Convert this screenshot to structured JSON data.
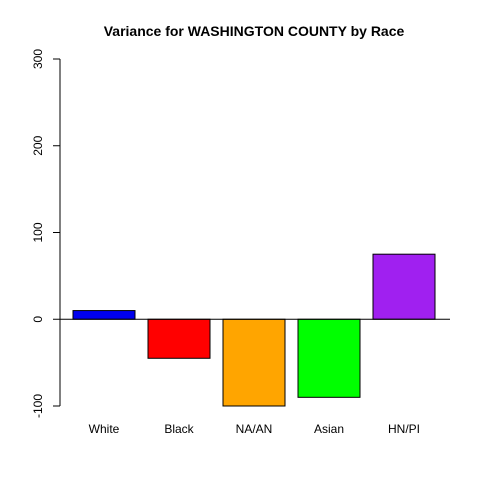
{
  "chart_data": {
    "type": "bar",
    "title": "Variance for WASHINGTON COUNTY by Race",
    "xlabel": "",
    "ylabel": "",
    "categories": [
      "White",
      "Black",
      "NA/AN",
      "Asian",
      "HN/PI"
    ],
    "values": [
      10,
      -45,
      -100,
      -90,
      75
    ],
    "colors": [
      "#0000ee",
      "#ff0000",
      "#ffa500",
      "#00ff00",
      "#a020f0"
    ],
    "ylim": [
      -100,
      300
    ],
    "yticks": [
      -100,
      0,
      100,
      200,
      300
    ],
    "ytick_labels": [
      "-100",
      "0",
      "100",
      "200",
      "300"
    ],
    "grid": false,
    "legend": "none"
  }
}
